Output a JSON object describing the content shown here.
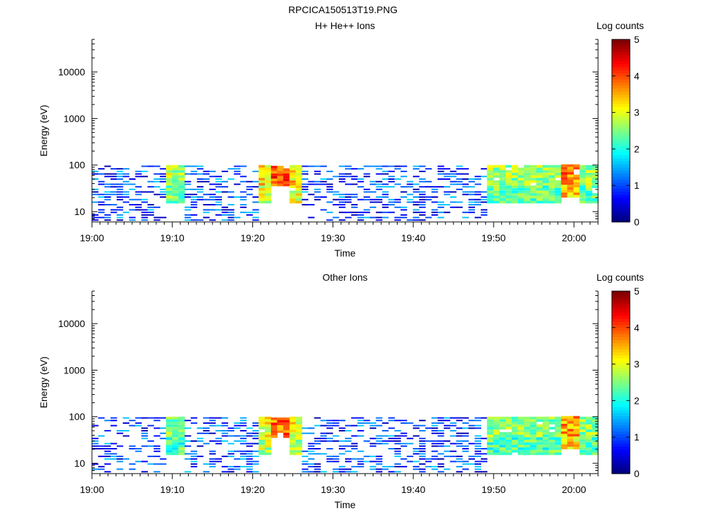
{
  "figure_title": "RPCICA150513T19.PNG",
  "chart_data": [
    {
      "type": "heatmap",
      "title": "H+ He++ Ions",
      "xlabel": "Time",
      "ylabel": "Energy (eV)",
      "y_scale": "log",
      "ylim": [
        6,
        50000
      ],
      "y_ticks": [
        10,
        100,
        1000,
        10000
      ],
      "y_tick_labels": [
        "10",
        "100",
        "1000",
        "10000"
      ],
      "x_range": [
        "19:00",
        "20:03"
      ],
      "x_ticks": [
        "19:00",
        "19:10",
        "19:20",
        "19:30",
        "19:40",
        "19:50",
        "20:00"
      ],
      "colorbar_label": "Log counts",
      "colorbar_range": [
        0,
        5
      ],
      "colorbar_ticks": [
        "0",
        "1",
        "2",
        "3",
        "4",
        "5"
      ],
      "colormap": "jet",
      "grid": false,
      "activity_blocks": [
        {
          "start": "19:00",
          "end": "19:20",
          "e_min": 6,
          "e_max": 95,
          "level": 0.8,
          "note": "sparse low-energy patches"
        },
        {
          "start": "19:09",
          "end": "19:10",
          "e_min": 15,
          "e_max": 95,
          "level": 2.8
        },
        {
          "start": "19:20",
          "end": "19:25",
          "e_min": 15,
          "e_max": 95,
          "level": 3.3
        },
        {
          "start": "19:22",
          "end": "19:23",
          "e_min": 35,
          "e_max": 95,
          "level": 4.1
        },
        {
          "start": "19:25",
          "end": "19:48",
          "e_min": 6,
          "e_max": 95,
          "level": 0.7,
          "note": "sparse low-energy patches"
        },
        {
          "start": "19:49",
          "end": "20:03",
          "e_min": 15,
          "e_max": 95,
          "level": 2.7
        },
        {
          "start": "19:58",
          "end": "19:59",
          "e_min": 20,
          "e_max": 95,
          "level": 3.8
        }
      ]
    },
    {
      "type": "heatmap",
      "title": "Other Ions",
      "xlabel": "Time",
      "ylabel": "Energy (eV)",
      "y_scale": "log",
      "ylim": [
        6,
        50000
      ],
      "y_ticks": [
        10,
        100,
        1000,
        10000
      ],
      "y_tick_labels": [
        "10",
        "100",
        "1000",
        "10000"
      ],
      "x_range": [
        "19:00",
        "20:03"
      ],
      "x_ticks": [
        "19:00",
        "19:10",
        "19:20",
        "19:30",
        "19:40",
        "19:50",
        "20:00"
      ],
      "colorbar_label": "Log counts",
      "colorbar_range": [
        0,
        5
      ],
      "colorbar_ticks": [
        "0",
        "1",
        "2",
        "3",
        "4",
        "5"
      ],
      "colormap": "jet",
      "grid": false,
      "activity_blocks": [
        {
          "start": "19:00",
          "end": "19:20",
          "e_min": 6,
          "e_max": 95,
          "level": 0.8,
          "note": "sparse low-energy patches"
        },
        {
          "start": "19:09",
          "end": "19:10",
          "e_min": 15,
          "e_max": 95,
          "level": 2.6
        },
        {
          "start": "19:20",
          "end": "19:25",
          "e_min": 15,
          "e_max": 95,
          "level": 3.1
        },
        {
          "start": "19:22",
          "end": "19:23",
          "e_min": 35,
          "e_max": 95,
          "level": 3.9
        },
        {
          "start": "19:25",
          "end": "19:48",
          "e_min": 6,
          "e_max": 95,
          "level": 0.7,
          "note": "sparse low-energy patches"
        },
        {
          "start": "19:49",
          "end": "20:03",
          "e_min": 15,
          "e_max": 95,
          "level": 2.6
        },
        {
          "start": "19:58",
          "end": "19:59",
          "e_min": 20,
          "e_max": 95,
          "level": 3.6
        }
      ]
    }
  ]
}
